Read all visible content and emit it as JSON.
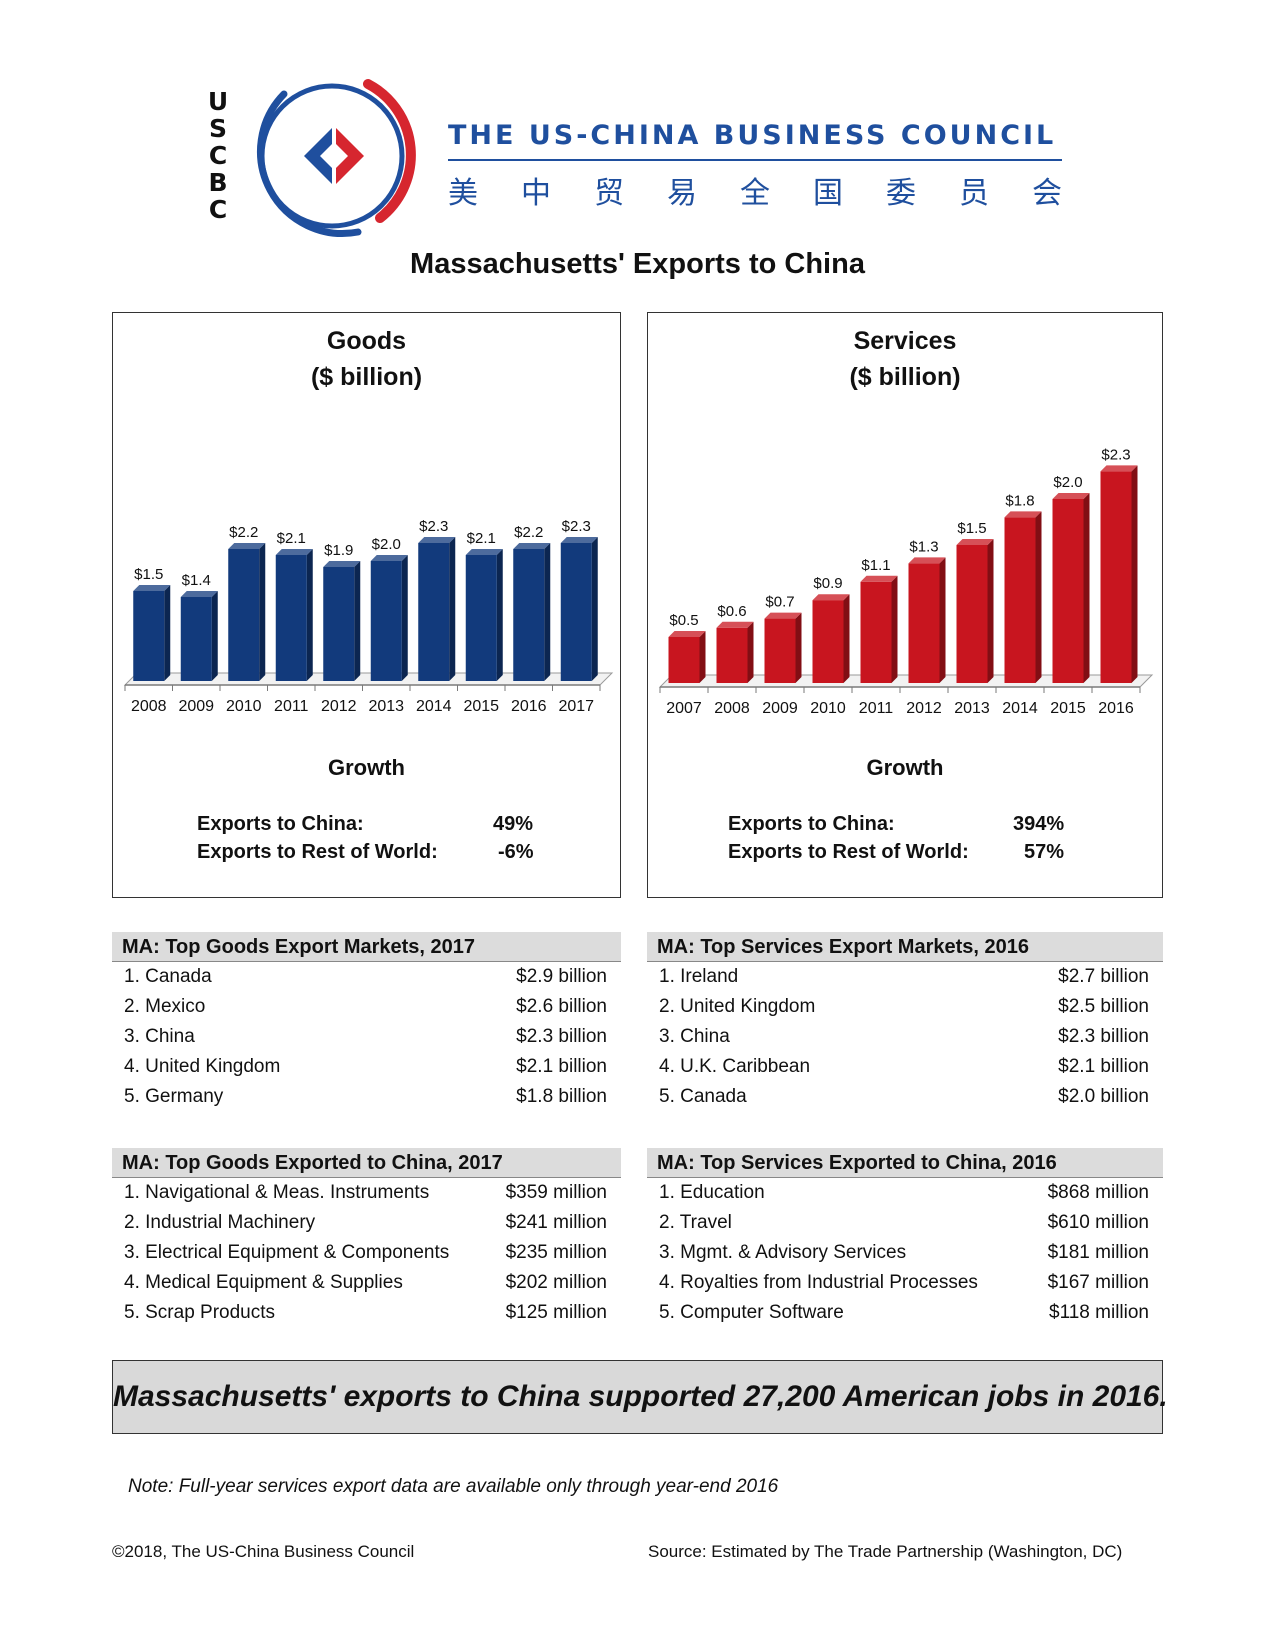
{
  "brand": {
    "logo_letters": [
      "U",
      "S",
      "C",
      "B",
      "C"
    ],
    "name": "THE US-CHINA BUSINESS COUNCIL",
    "name_cn": [
      "美",
      "中",
      "贸",
      "易",
      "全",
      "国",
      "委",
      "员",
      "会"
    ],
    "blue": "#1f4f9e",
    "red": "#d6262f"
  },
  "page_title": "Massachusetts' Exports to China",
  "goods_panel": {
    "title_line1": "Goods",
    "title_line2": "($ billion)",
    "growth_title": "Growth",
    "growth": [
      {
        "label": "Exports to China:",
        "value": "49%"
      },
      {
        "label": "Exports to Rest of World:",
        "value": "-6%"
      }
    ]
  },
  "services_panel": {
    "title_line1": "Services",
    "title_line2": "($ billion)",
    "growth_title": "Growth",
    "growth": [
      {
        "label": "Exports to China:",
        "value": "394%"
      },
      {
        "label": "Exports to Rest of World:",
        "value": "57%"
      }
    ]
  },
  "chart_data": [
    {
      "type": "bar",
      "title": "Goods ($ billion)",
      "categories": [
        "2008",
        "2009",
        "2010",
        "2011",
        "2012",
        "2013",
        "2014",
        "2015",
        "2016",
        "2017"
      ],
      "values": [
        1.5,
        1.4,
        2.2,
        2.1,
        1.9,
        2.0,
        2.3,
        2.1,
        2.2,
        2.3
      ],
      "data_labels": [
        "$1.5",
        "$1.4",
        "$2.2",
        "$2.1",
        "$1.9",
        "$2.0",
        "$2.3",
        "$2.1",
        "$2.2",
        "$2.3"
      ],
      "color": "#123a7c",
      "ylim": [
        0,
        2.3
      ],
      "grid": false
    },
    {
      "type": "bar",
      "title": "Services ($ billion)",
      "categories": [
        "2007",
        "2008",
        "2009",
        "2010",
        "2011",
        "2012",
        "2013",
        "2014",
        "2015",
        "2016"
      ],
      "values": [
        0.5,
        0.6,
        0.7,
        0.9,
        1.1,
        1.3,
        1.5,
        1.8,
        2.0,
        2.3
      ],
      "data_labels": [
        "$0.5",
        "$0.6",
        "$0.7",
        "$0.9",
        "$1.1",
        "$1.3",
        "$1.5",
        "$1.8",
        "$2.0",
        "$2.3"
      ],
      "color": "#c8151f",
      "ylim": [
        0,
        2.3
      ],
      "grid": false
    }
  ],
  "tables": {
    "goods_markets": {
      "title": "MA: Top Goods Export Markets, 2017",
      "rows": [
        {
          "label": "1. Canada",
          "value": "$2.9 billion"
        },
        {
          "label": "2. Mexico",
          "value": "$2.6 billion"
        },
        {
          "label": "3. China",
          "value": "$2.3 billion"
        },
        {
          "label": "4. United Kingdom",
          "value": "$2.1 billion"
        },
        {
          "label": "5. Germany",
          "value": "$1.8 billion"
        }
      ]
    },
    "services_markets": {
      "title": "MA: Top Services Export Markets, 2016",
      "rows": [
        {
          "label": "1. Ireland",
          "value": "$2.7 billion"
        },
        {
          "label": "2. United Kingdom",
          "value": "$2.5 billion"
        },
        {
          "label": "3. China",
          "value": "$2.3 billion"
        },
        {
          "label": "4. U.K. Caribbean",
          "value": "$2.1 billion"
        },
        {
          "label": "5. Canada",
          "value": "$2.0 billion"
        }
      ]
    },
    "goods_to_china": {
      "title": "MA: Top Goods Exported to China, 2017",
      "rows": [
        {
          "label": "1. Navigational & Meas. Instruments",
          "value": "$359 million"
        },
        {
          "label": "2. Industrial Machinery",
          "value": "$241 million"
        },
        {
          "label": "3. Electrical Equipment & Components",
          "value": "$235 million"
        },
        {
          "label": "4. Medical Equipment & Supplies",
          "value": "$202 million"
        },
        {
          "label": "5. Scrap Products",
          "value": "$125 million"
        }
      ]
    },
    "services_to_china": {
      "title": "MA: Top Services Exported to China, 2016",
      "rows": [
        {
          "label": "1. Education",
          "value": "$868 million"
        },
        {
          "label": "2. Travel",
          "value": "$610 million"
        },
        {
          "label": "3. Mgmt. & Advisory Services",
          "value": "$181 million"
        },
        {
          "label": "4. Royalties from Industrial Processes",
          "value": "$167 million"
        },
        {
          "label": "5. Computer Software",
          "value": "$118 million"
        }
      ]
    }
  },
  "banner": "Massachusetts' exports to China supported 27,200 American jobs in 2016.",
  "note": "Note: Full-year services export data are available only through year-end 2016",
  "footer": {
    "copyright": "©2018, The US-China Business Council",
    "source": "Source: Estimated by The Trade Partnership (Washington, DC)"
  }
}
